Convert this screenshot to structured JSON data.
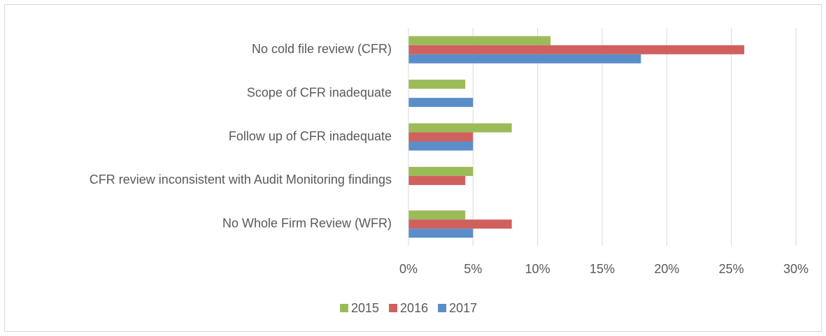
{
  "chart_data": {
    "type": "hbar",
    "categories": [
      "No cold file review (CFR)",
      "Scope of CFR inadequate",
      "Follow up of CFR inadequate",
      "CFR review inconsistent with Audit Monitoring findings",
      "No Whole Firm Review (WFR)"
    ],
    "series": [
      {
        "name": "2015",
        "color": "#9bbb59",
        "values": [
          11,
          4.4,
          8,
          5,
          4.4
        ]
      },
      {
        "name": "2016",
        "color": "#d0605e",
        "values": [
          26,
          0,
          5,
          4.4,
          8
        ]
      },
      {
        "name": "2017",
        "color": "#5b8ec9",
        "values": [
          18,
          5,
          5,
          0,
          5
        ]
      }
    ],
    "xlim": [
      0,
      30
    ],
    "xticks": [
      {
        "value": 0,
        "label": "0%"
      },
      {
        "value": 5,
        "label": "5%"
      },
      {
        "value": 10,
        "label": "10%"
      },
      {
        "value": 15,
        "label": "15%"
      },
      {
        "value": 20,
        "label": "20%"
      },
      {
        "value": 25,
        "label": "25%"
      },
      {
        "value": 30,
        "label": "30%"
      }
    ],
    "grid": true,
    "legend": "bottom"
  }
}
